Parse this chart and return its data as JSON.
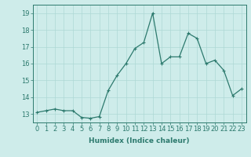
{
  "x": [
    0,
    1,
    2,
    3,
    4,
    5,
    6,
    7,
    8,
    9,
    10,
    11,
    12,
    13,
    14,
    15,
    16,
    17,
    18,
    19,
    20,
    21,
    22,
    23
  ],
  "y": [
    13.1,
    13.2,
    13.3,
    13.2,
    13.2,
    12.8,
    12.75,
    12.85,
    14.4,
    15.3,
    16.0,
    16.9,
    17.25,
    19.0,
    16.0,
    16.4,
    16.4,
    17.8,
    17.5,
    16.0,
    16.2,
    15.6,
    14.1,
    14.5
  ],
  "line_color": "#2d7a6e",
  "marker": "+",
  "marker_size": 3,
  "bg_color": "#ceecea",
  "grid_color": "#aed8d5",
  "xlabel": "Humidex (Indice chaleur)",
  "ylim": [
    12.5,
    19.5
  ],
  "xlim": [
    -0.5,
    23.5
  ],
  "yticks": [
    13,
    14,
    15,
    16,
    17,
    18,
    19
  ],
  "xticks": [
    0,
    1,
    2,
    3,
    4,
    5,
    6,
    7,
    8,
    9,
    10,
    11,
    12,
    13,
    14,
    15,
    16,
    17,
    18,
    19,
    20,
    21,
    22,
    23
  ],
  "tick_color": "#2d7a6e",
  "xlabel_fontsize": 6.5,
  "tick_fontsize": 6,
  "linewidth": 0.9,
  "markeredgewidth": 0.8
}
